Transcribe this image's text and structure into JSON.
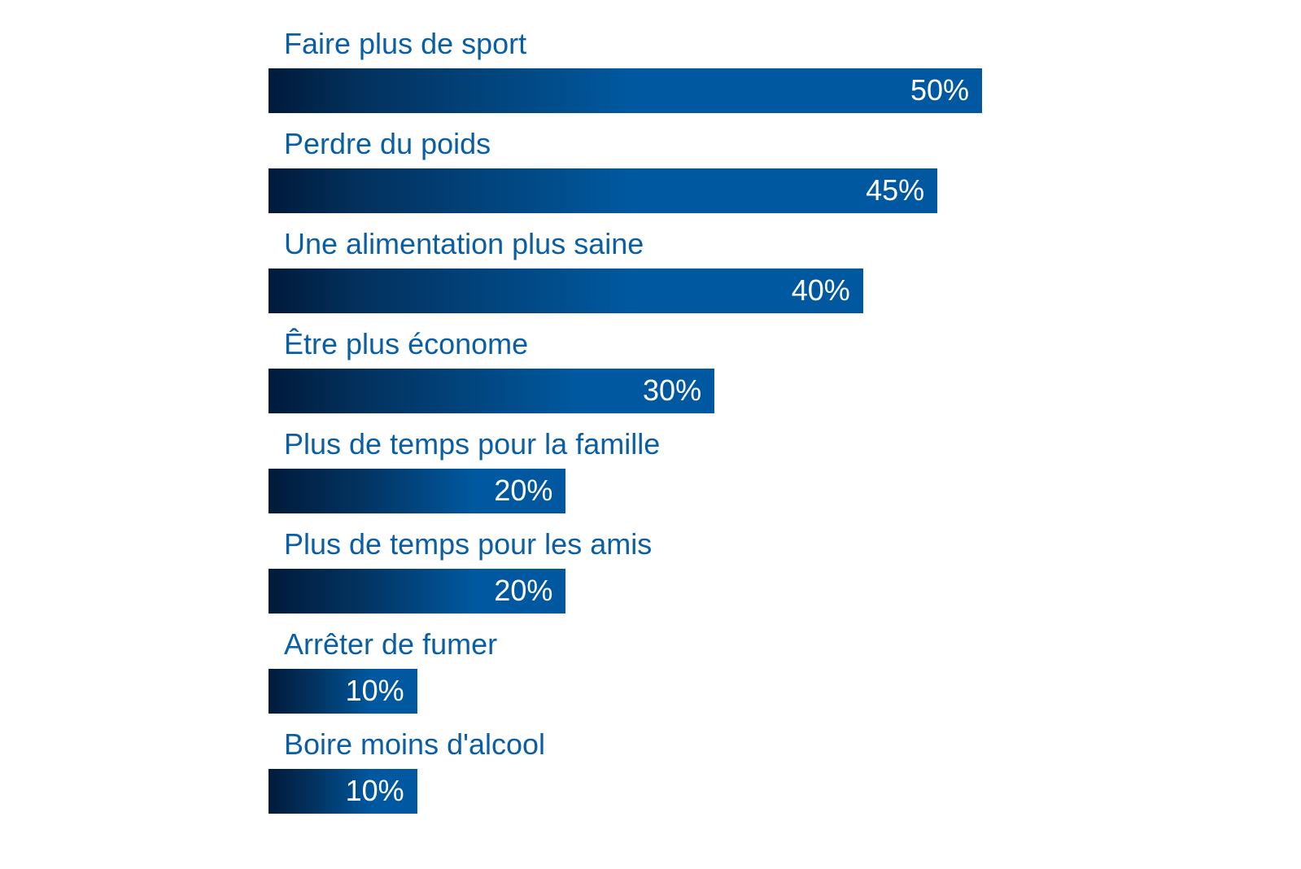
{
  "chart_data": {
    "type": "bar",
    "orientation": "horizontal",
    "categories": [
      "Faire plus de sport",
      "Perdre du poids",
      "Une alimentation plus saine",
      "Être plus économe",
      "Plus de temps pour la famille",
      "Plus de temps pour les amis",
      "Arrêter de fumer",
      "Boire moins d'alcool"
    ],
    "values": [
      50,
      45,
      40,
      30,
      20,
      20,
      10,
      10
    ],
    "value_labels": [
      "50%",
      "45%",
      "40%",
      "30%",
      "20%",
      "20%",
      "10%",
      "10%"
    ],
    "title": "",
    "xlabel": "",
    "ylabel": "",
    "xlim": [
      0,
      50
    ],
    "grid": false,
    "colors": {
      "label": "#0a5ea6",
      "bar_start": "#001a3a",
      "bar_end": "#0059a0",
      "value_text": "#ffffff"
    }
  }
}
